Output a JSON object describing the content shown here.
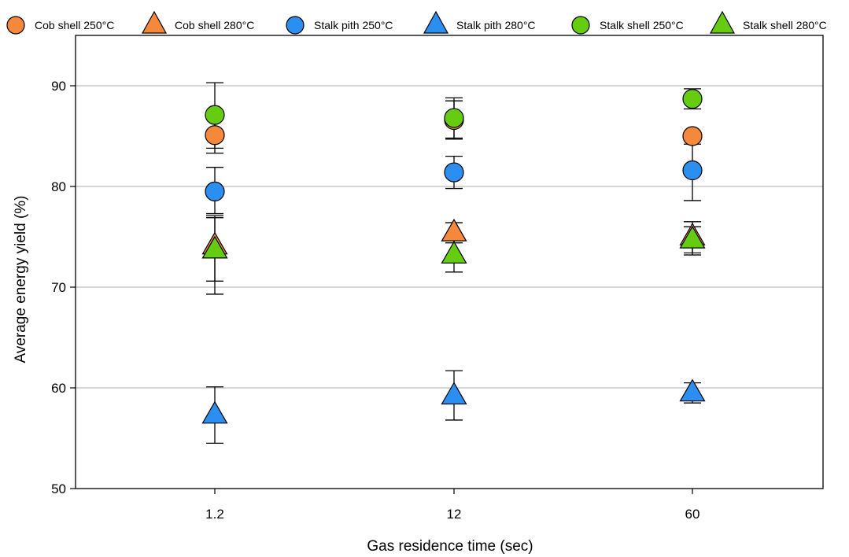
{
  "chart_data": {
    "type": "scatter",
    "xlabel": "Gas residence time (sec)",
    "ylabel": "Average energy yield (%)",
    "categories": [
      "1.2",
      "12",
      "60"
    ],
    "ylim": [
      50,
      95
    ],
    "yticks": [
      50,
      60,
      70,
      80,
      90
    ],
    "grid": "horizontal",
    "legend_position": "top",
    "series": [
      {
        "name": "Cob shell 250°C",
        "marker": "circle",
        "color": "#f5883a",
        "values": [
          85.1,
          86.6,
          85.0
        ],
        "err_low": [
          1.8,
          1.9,
          0.8
        ],
        "err_high": [
          1.8,
          1.9,
          0.0
        ]
      },
      {
        "name": "Cob shell 280°C",
        "marker": "triangle",
        "color": "#f5883a",
        "values": [
          74.1,
          75.4,
          75.0
        ],
        "err_low": [
          3.5,
          1.0,
          1.8
        ],
        "err_high": [
          3.0,
          1.0,
          1.5
        ]
      },
      {
        "name": "Stalk pith 250°C",
        "marker": "circle",
        "color": "#2a8ff0",
        "values": [
          79.5,
          81.4,
          81.6
        ],
        "err_low": [
          2.2,
          1.6,
          3.0
        ],
        "err_high": [
          2.4,
          1.6,
          3.0
        ]
      },
      {
        "name": "Stalk pith 280°C",
        "marker": "triangle",
        "color": "#2a8ff0",
        "values": [
          57.3,
          59.2,
          59.5
        ],
        "err_low": [
          2.8,
          2.4,
          1.0
        ],
        "err_high": [
          2.8,
          2.5,
          1.0
        ]
      },
      {
        "name": "Stalk shell 250°C",
        "marker": "circle",
        "color": "#66cc11",
        "values": [
          87.1,
          86.8,
          88.7
        ],
        "err_low": [
          3.3,
          2.0,
          1.0
        ],
        "err_high": [
          3.2,
          2.0,
          1.0
        ]
      },
      {
        "name": "Stalk shell 280°C",
        "marker": "triangle",
        "color": "#66cc11",
        "values": [
          73.7,
          73.2,
          74.7
        ],
        "err_low": [
          4.4,
          1.7,
          1.3
        ],
        "err_high": [
          3.2,
          1.7,
          1.3
        ]
      }
    ]
  }
}
